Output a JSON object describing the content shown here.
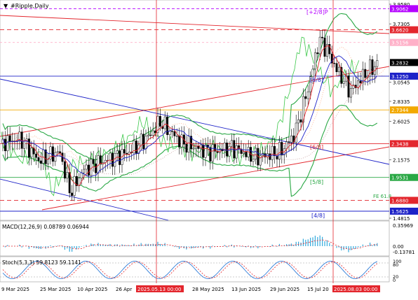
{
  "window": {
    "title": "#Ripple,Daily",
    "menu_arrow": "▼"
  },
  "price_axis": {
    "labels": [
      "3.9580",
      "3.9062",
      "3.7305",
      "3.6620",
      "3.5156",
      "3.2832",
      "3.1250",
      "3.0545",
      "2.8335",
      "2.7344",
      "2.6025",
      "2.3438",
      "2.1575",
      "1.9531",
      "1.6880",
      "1.5625",
      "1.4815"
    ],
    "highlighted": [
      {
        "value": "3.9062",
        "color": "#b400ff"
      },
      {
        "value": "3.6620",
        "color": "#e3262d"
      },
      {
        "value": "3.5156",
        "color": "#ffb0c8"
      },
      {
        "value": "3.2832",
        "color": "#000000"
      },
      {
        "value": "3.1250",
        "color": "#1d22c8"
      },
      {
        "value": "2.7344",
        "color": "#f2a900"
      },
      {
        "value": "2.3438",
        "color": "#e3262d"
      },
      {
        "value": "1.9531",
        "color": "#2aa845"
      },
      {
        "value": "1.6880",
        "color": "#e3262d"
      },
      {
        "value": "1.5625",
        "color": "#1d22c8"
      }
    ]
  },
  "murrey_labels": {
    "m_plus2": "[+2/8]P",
    "m_8": "[8/8]",
    "m_6": "[6/8]",
    "m_5": "[5/8]",
    "m_4": "[4/8]",
    "fe": "FE 61.8"
  },
  "macd": {
    "label": "MACD(12,26,9) 0.08789 0.06944",
    "axis": [
      "0.35969",
      "0.00",
      "-0.13781"
    ]
  },
  "stoch": {
    "label": "Stoch(5,3,3) 59.8123 59.1141",
    "axis": [
      "100",
      "80",
      "20",
      "0"
    ]
  },
  "time_axis": {
    "labels": [
      "9 Mar 2025",
      "25 Mar 2025",
      "10 Apr 2025",
      "26 Apr",
      "2025.05.13 00:00",
      "28 May 2025",
      "13 Jun 2025",
      "29 Jun 2025",
      "15 Jul 20",
      "2025.08.03 00:00"
    ],
    "highlighted": [
      "2025.05.13 00:00",
      "2025.08.03 00:00"
    ]
  },
  "chart_data": {
    "type": "candlestick",
    "title": "#Ripple,Daily",
    "ylim": [
      1.4815,
      3.958
    ],
    "close_last": 3.2832,
    "series_summary": [
      {
        "date": "2025-03-09",
        "close": 2.35
      },
      {
        "date": "2025-03-25",
        "close": 2.4
      },
      {
        "date": "2025-04-07",
        "close": 1.75
      },
      {
        "date": "2025-04-10",
        "close": 2.05
      },
      {
        "date": "2025-04-26",
        "close": 2.25
      },
      {
        "date": "2025-05-13",
        "close": 2.55
      },
      {
        "date": "2025-05-28",
        "close": 2.3
      },
      {
        "date": "2025-06-13",
        "close": 2.18
      },
      {
        "date": "2025-06-29",
        "close": 2.2
      },
      {
        "date": "2025-07-10",
        "close": 2.5
      },
      {
        "date": "2025-07-18",
        "close": 3.55
      },
      {
        "date": "2025-07-28",
        "close": 3.2
      },
      {
        "date": "2025-08-03",
        "close": 2.8
      },
      {
        "date": "2025-08-10",
        "close": 3.3
      }
    ],
    "levels": [
      {
        "name": "[+2/8]",
        "value": 3.9062
      },
      {
        "name": "[8/8]",
        "value": 3.125
      },
      {
        "name": "[6/8]",
        "value": 2.3438
      },
      {
        "name": "[5/8]",
        "value": 1.9531
      },
      {
        "name": "[4/8]",
        "value": 1.5625
      }
    ]
  }
}
